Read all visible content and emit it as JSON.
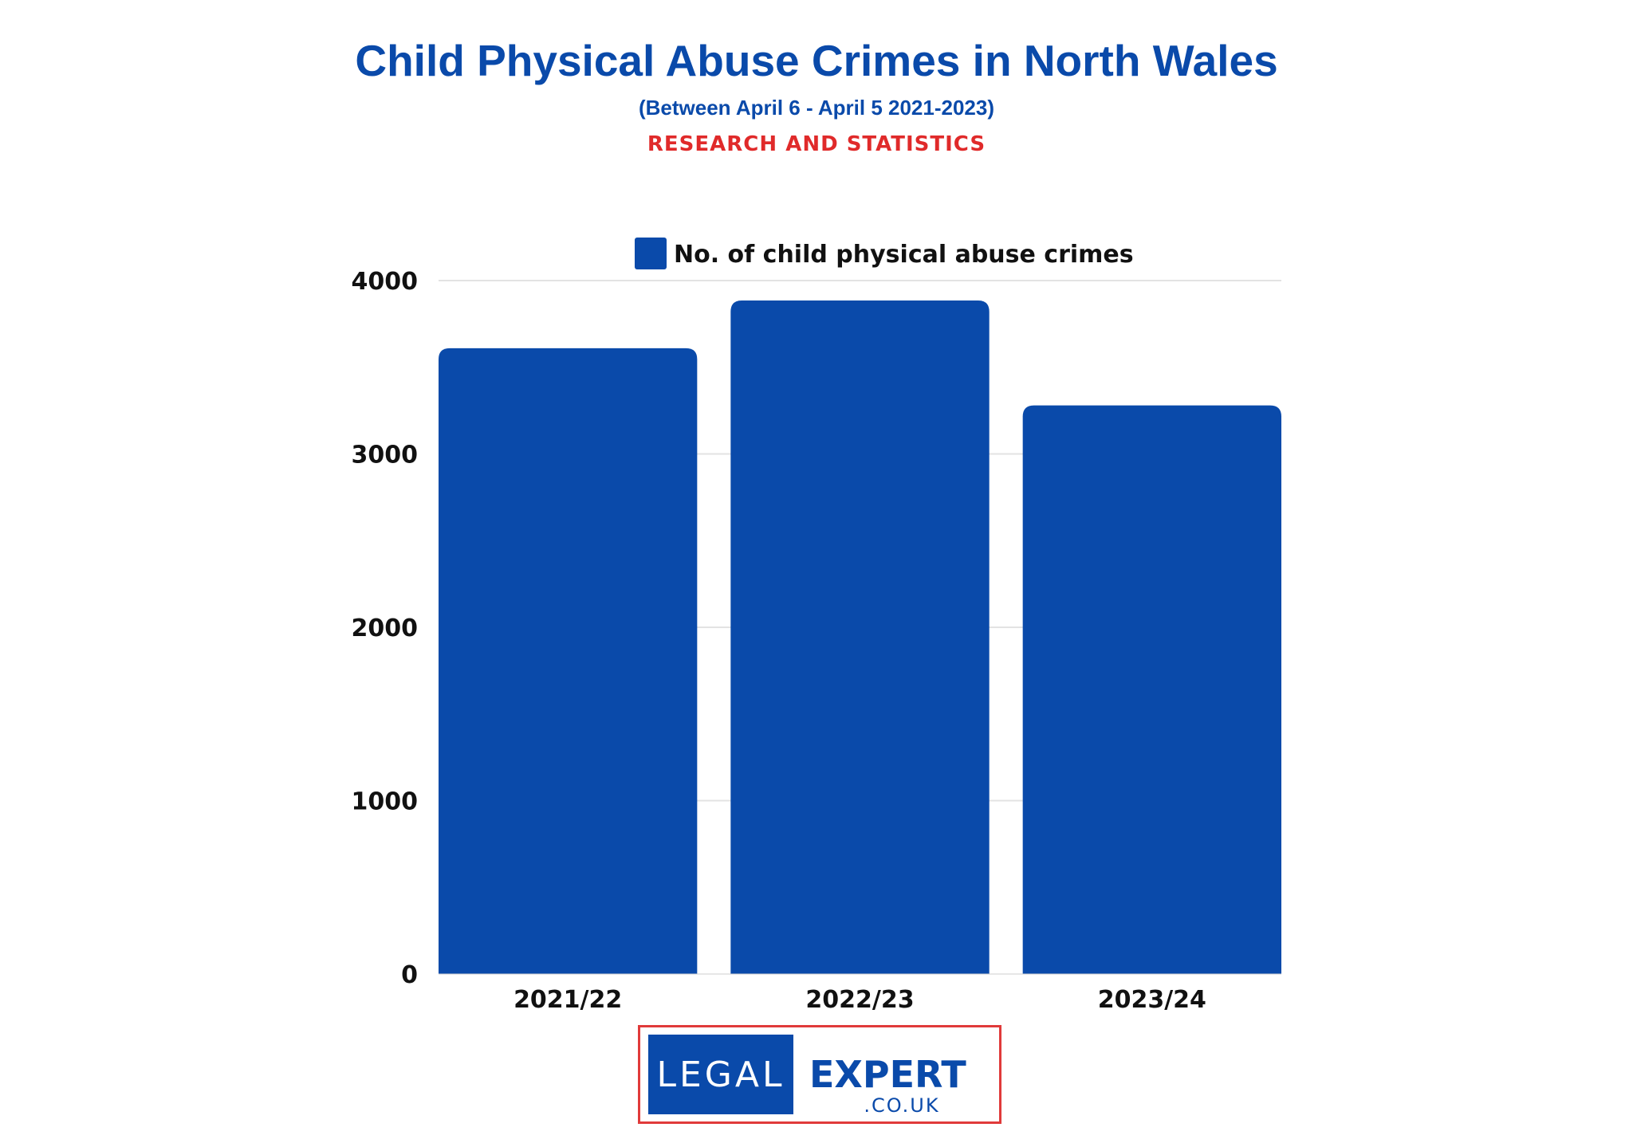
{
  "header": {
    "title": "Child Physical Abuse Crimes in North Wales",
    "subtitle": "(Between April 6 - April 5 2021-2023)",
    "tagline": "RESEARCH AND STATISTICS"
  },
  "chart_data": {
    "type": "bar",
    "categories": [
      "2021/22",
      "2022/23",
      "2023/24"
    ],
    "series": [
      {
        "name": "No. of child physical abuse crimes",
        "values": [
          3610,
          3885,
          3280
        ],
        "color": "#0a4aaa"
      }
    ],
    "ylim": [
      0,
      4000
    ],
    "yticks": [
      0,
      1000,
      2000,
      3000,
      4000
    ],
    "grid": true,
    "legend": "top-center",
    "xlabel": "",
    "ylabel": ""
  },
  "logo": {
    "left_text": "LEGAL",
    "right_text": "EXPERT",
    "sub_text": ".CO.UK",
    "border_color": "#e03a3a",
    "brand_color": "#0a4aaa"
  }
}
